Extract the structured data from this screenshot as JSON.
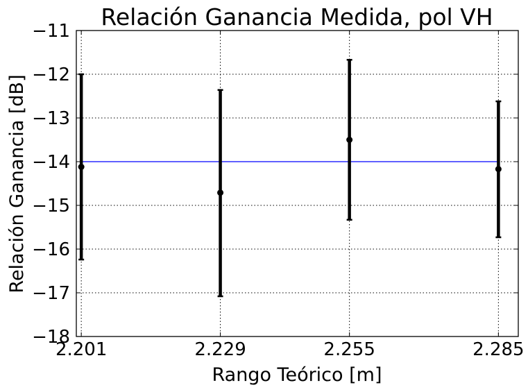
{
  "chart_data": {
    "type": "scatter",
    "title": "Relación Ganancia Medida, pol VH",
    "xlabel": "Rango Teórico [m]",
    "ylabel": "Relación Ganancia [dB]",
    "x_tick_labels": [
      "2.201",
      "2.229",
      "2.255",
      "2.285"
    ],
    "y_ticks": [
      -11,
      -12,
      -13,
      -14,
      -15,
      -16,
      -17,
      -18
    ],
    "y_tick_labels": [
      "−11",
      "−12",
      "−13",
      "−14",
      "−15",
      "−16",
      "−17",
      "−18"
    ],
    "xlim": [
      2.2,
      2.289
    ],
    "ylim": [
      -18,
      -11
    ],
    "grid": true,
    "reference_line": {
      "y": -14,
      "color": "#0000ff"
    },
    "series": [
      {
        "color": "#000000",
        "points": [
          {
            "x": 2.201,
            "y": -14.12,
            "err_low": -16.24,
            "err_high": -12.0
          },
          {
            "x": 2.229,
            "y": -14.71,
            "err_low": -17.08,
            "err_high": -12.36
          },
          {
            "x": 2.255,
            "y": -13.5,
            "err_low": -15.33,
            "err_high": -11.67
          },
          {
            "x": 2.285,
            "y": -14.17,
            "err_low": -15.73,
            "err_high": -12.62
          }
        ]
      }
    ]
  }
}
